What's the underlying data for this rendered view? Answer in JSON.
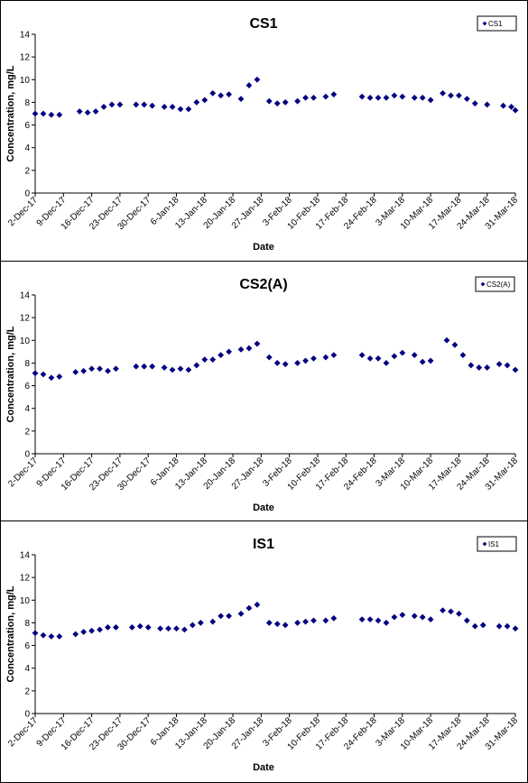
{
  "colors": {
    "marker": "#000080",
    "axis": "#000000",
    "background": "#ffffff"
  },
  "chart_data": [
    {
      "type": "scatter",
      "title": "CS1",
      "xlabel": "Date",
      "ylabel": "Concentration, mg/L",
      "ylim": [
        0,
        14
      ],
      "yticks": [
        0,
        2,
        4,
        6,
        8,
        10,
        12,
        14
      ],
      "xlim": [
        "2017-12-02",
        "2018-03-31"
      ],
      "xticks": [
        "2-Dec-17",
        "9-Dec-17",
        "16-Dec-17",
        "23-Dec-17",
        "30-Dec-17",
        "6-Jan-18",
        "13-Jan-18",
        "20-Jan-18",
        "27-Jan-18",
        "3-Feb-18",
        "10-Feb-18",
        "17-Feb-18",
        "24-Feb-18",
        "3-Mar-18",
        "10-Mar-18",
        "17-Mar-18",
        "24-Mar-18",
        "31-Mar-18"
      ],
      "grid": false,
      "legend_position": "top-right",
      "series": [
        {
          "name": "CS1",
          "x": [
            "2017-12-02",
            "2017-12-04",
            "2017-12-06",
            "2017-12-08",
            "2017-12-13",
            "2017-12-15",
            "2017-12-17",
            "2017-12-19",
            "2017-12-21",
            "2017-12-23",
            "2017-12-27",
            "2017-12-29",
            "2017-12-31",
            "2018-01-03",
            "2018-01-05",
            "2018-01-07",
            "2018-01-09",
            "2018-01-11",
            "2018-01-13",
            "2018-01-15",
            "2018-01-17",
            "2018-01-19",
            "2018-01-22",
            "2018-01-24",
            "2018-01-26",
            "2018-01-29",
            "2018-01-31",
            "2018-02-02",
            "2018-02-05",
            "2018-02-07",
            "2018-02-09",
            "2018-02-12",
            "2018-02-14",
            "2018-02-21",
            "2018-02-23",
            "2018-02-25",
            "2018-02-27",
            "2018-03-01",
            "2018-03-03",
            "2018-03-06",
            "2018-03-08",
            "2018-03-10",
            "2018-03-13",
            "2018-03-15",
            "2018-03-17",
            "2018-03-19",
            "2018-03-21",
            "2018-03-24",
            "2018-03-28",
            "2018-03-30",
            "2018-03-31"
          ],
          "y": [
            7.0,
            7.0,
            6.9,
            6.9,
            7.2,
            7.1,
            7.2,
            7.6,
            7.8,
            7.8,
            7.8,
            7.8,
            7.7,
            7.6,
            7.6,
            7.4,
            7.4,
            8.0,
            8.2,
            8.8,
            8.6,
            8.7,
            8.3,
            9.5,
            10.0,
            8.1,
            7.9,
            8.0,
            8.1,
            8.4,
            8.4,
            8.5,
            8.7,
            8.5,
            8.4,
            8.4,
            8.4,
            8.6,
            8.5,
            8.4,
            8.4,
            8.2,
            8.8,
            8.6,
            8.6,
            8.3,
            7.9,
            7.8,
            7.7,
            7.6,
            7.3
          ]
        }
      ]
    },
    {
      "type": "scatter",
      "title": "CS2(A)",
      "xlabel": "Date",
      "ylabel": "Concentration, mg/L",
      "ylim": [
        0,
        14
      ],
      "yticks": [
        0,
        2,
        4,
        6,
        8,
        10,
        12,
        14
      ],
      "xlim": [
        "2017-12-02",
        "2018-03-31"
      ],
      "xticks": [
        "2-Dec-17",
        "9-Dec-17",
        "16-Dec-17",
        "23-Dec-17",
        "30-Dec-17",
        "6-Jan-18",
        "13-Jan-18",
        "20-Jan-18",
        "27-Jan-18",
        "3-Feb-18",
        "10-Feb-18",
        "17-Feb-18",
        "24-Feb-18",
        "3-Mar-18",
        "10-Mar-18",
        "17-Mar-18",
        "24-Mar-18",
        "31-Mar-18"
      ],
      "grid": false,
      "legend_position": "top-right",
      "series": [
        {
          "name": "CS2(A)",
          "x": [
            "2017-12-02",
            "2017-12-04",
            "2017-12-06",
            "2017-12-08",
            "2017-12-12",
            "2017-12-14",
            "2017-12-16",
            "2017-12-18",
            "2017-12-20",
            "2017-12-22",
            "2017-12-27",
            "2017-12-29",
            "2017-12-31",
            "2018-01-03",
            "2018-01-05",
            "2018-01-07",
            "2018-01-09",
            "2018-01-11",
            "2018-01-13",
            "2018-01-15",
            "2018-01-17",
            "2018-01-19",
            "2018-01-22",
            "2018-01-24",
            "2018-01-26",
            "2018-01-29",
            "2018-01-31",
            "2018-02-02",
            "2018-02-05",
            "2018-02-07",
            "2018-02-09",
            "2018-02-12",
            "2018-02-14",
            "2018-02-21",
            "2018-02-23",
            "2018-02-25",
            "2018-02-27",
            "2018-03-01",
            "2018-03-03",
            "2018-03-06",
            "2018-03-08",
            "2018-03-10",
            "2018-03-14",
            "2018-03-16",
            "2018-03-18",
            "2018-03-20",
            "2018-03-22",
            "2018-03-24",
            "2018-03-27",
            "2018-03-29",
            "2018-03-31"
          ],
          "y": [
            7.1,
            7.0,
            6.7,
            6.8,
            7.2,
            7.3,
            7.5,
            7.5,
            7.3,
            7.5,
            7.7,
            7.7,
            7.7,
            7.6,
            7.4,
            7.5,
            7.4,
            7.8,
            8.3,
            8.3,
            8.7,
            9.0,
            9.2,
            9.3,
            9.7,
            8.5,
            8.0,
            7.9,
            8.0,
            8.2,
            8.4,
            8.5,
            8.7,
            8.7,
            8.4,
            8.4,
            8.0,
            8.6,
            8.9,
            8.7,
            8.1,
            8.2,
            10.0,
            9.6,
            8.7,
            7.8,
            7.6,
            7.6,
            7.9,
            7.8,
            7.4
          ]
        }
      ]
    },
    {
      "type": "scatter",
      "title": "IS1",
      "xlabel": "Date",
      "ylabel": "Concentration, mg/L",
      "ylim": [
        0,
        14
      ],
      "yticks": [
        0,
        2,
        4,
        6,
        8,
        10,
        12,
        14
      ],
      "xlim": [
        "2017-12-02",
        "2018-03-31"
      ],
      "xticks": [
        "2-Dec-17",
        "9-Dec-17",
        "16-Dec-17",
        "23-Dec-17",
        "30-Dec-17",
        "6-Jan-18",
        "13-Jan-18",
        "20-Jan-18",
        "27-Jan-18",
        "3-Feb-18",
        "10-Feb-18",
        "17-Feb-18",
        "24-Feb-18",
        "3-Mar-18",
        "10-Mar-18",
        "17-Mar-18",
        "24-Mar-18",
        "31-Mar-18"
      ],
      "grid": false,
      "legend_position": "top-right",
      "series": [
        {
          "name": "IS1",
          "x": [
            "2017-12-02",
            "2017-12-04",
            "2017-12-06",
            "2017-12-08",
            "2017-12-12",
            "2017-12-14",
            "2017-12-16",
            "2017-12-18",
            "2017-12-20",
            "2017-12-22",
            "2017-12-26",
            "2017-12-28",
            "2017-12-30",
            "2018-01-02",
            "2018-01-04",
            "2018-01-06",
            "2018-01-08",
            "2018-01-10",
            "2018-01-12",
            "2018-01-15",
            "2018-01-17",
            "2018-01-19",
            "2018-01-22",
            "2018-01-24",
            "2018-01-26",
            "2018-01-29",
            "2018-01-31",
            "2018-02-02",
            "2018-02-05",
            "2018-02-07",
            "2018-02-09",
            "2018-02-12",
            "2018-02-14",
            "2018-02-21",
            "2018-02-23",
            "2018-02-25",
            "2018-02-27",
            "2018-03-01",
            "2018-03-03",
            "2018-03-06",
            "2018-03-08",
            "2018-03-10",
            "2018-03-13",
            "2018-03-15",
            "2018-03-17",
            "2018-03-19",
            "2018-03-21",
            "2018-03-23",
            "2018-03-27",
            "2018-03-29",
            "2018-03-31"
          ],
          "y": [
            7.1,
            6.9,
            6.8,
            6.8,
            7.0,
            7.2,
            7.3,
            7.4,
            7.6,
            7.6,
            7.6,
            7.7,
            7.6,
            7.5,
            7.5,
            7.5,
            7.4,
            7.8,
            8.0,
            8.1,
            8.6,
            8.6,
            8.8,
            9.3,
            9.6,
            8.0,
            7.9,
            7.8,
            8.0,
            8.1,
            8.2,
            8.2,
            8.4,
            8.3,
            8.3,
            8.2,
            8.0,
            8.5,
            8.7,
            8.6,
            8.5,
            8.3,
            9.1,
            9.0,
            8.8,
            8.2,
            7.7,
            7.8,
            7.7,
            7.7,
            7.5
          ]
        }
      ]
    }
  ]
}
